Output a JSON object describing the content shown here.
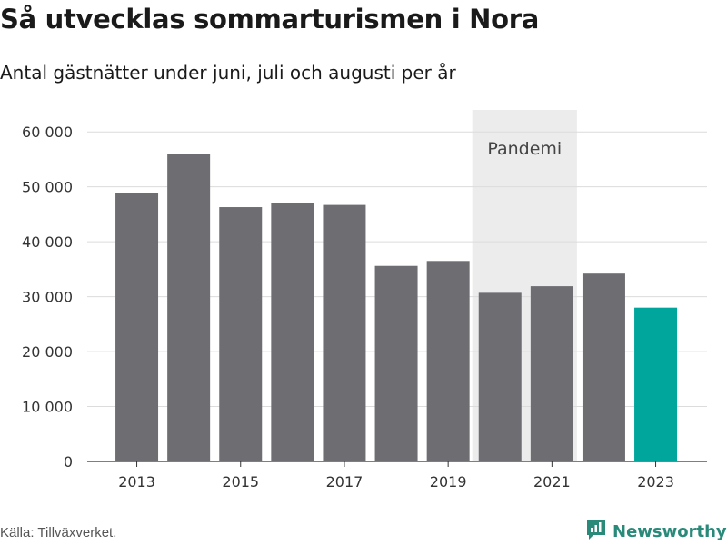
{
  "title": "Så utvecklas sommarturismen i Nora",
  "subtitle": "Antal gästnätter under juni, juli och augusti per år",
  "source": "Källa: Tillväxverket.",
  "brand": "Newsworthy",
  "colors": {
    "bar": "#6e6d72",
    "highlight": "#00a69c",
    "band": "#ececec",
    "grid": "#dcdcdc",
    "axis": "#333333",
    "brand": "#2a8a7a"
  },
  "chart_data": {
    "type": "bar",
    "categories": [
      "2013",
      "2014",
      "2015",
      "2016",
      "2017",
      "2018",
      "2019",
      "2020",
      "2021",
      "2022",
      "2023"
    ],
    "values": [
      48900,
      55900,
      46300,
      47100,
      46700,
      35600,
      36500,
      30700,
      31900,
      34200,
      28000
    ],
    "highlight_category": "2023",
    "y_ticks": [
      0,
      10000,
      20000,
      30000,
      40000,
      50000,
      60000
    ],
    "y_tick_labels": [
      "0",
      "10 000",
      "20 000",
      "30 000",
      "40 000",
      "50 000",
      "60 000"
    ],
    "x_tick_labels": [
      "2013",
      "2015",
      "2017",
      "2019",
      "2021",
      "2023"
    ],
    "ylim": [
      0,
      64000
    ],
    "annotation": {
      "label": "Pandemi",
      "from": "2020",
      "to": "2021"
    },
    "grid": true,
    "xlabel": "",
    "ylabel": ""
  }
}
